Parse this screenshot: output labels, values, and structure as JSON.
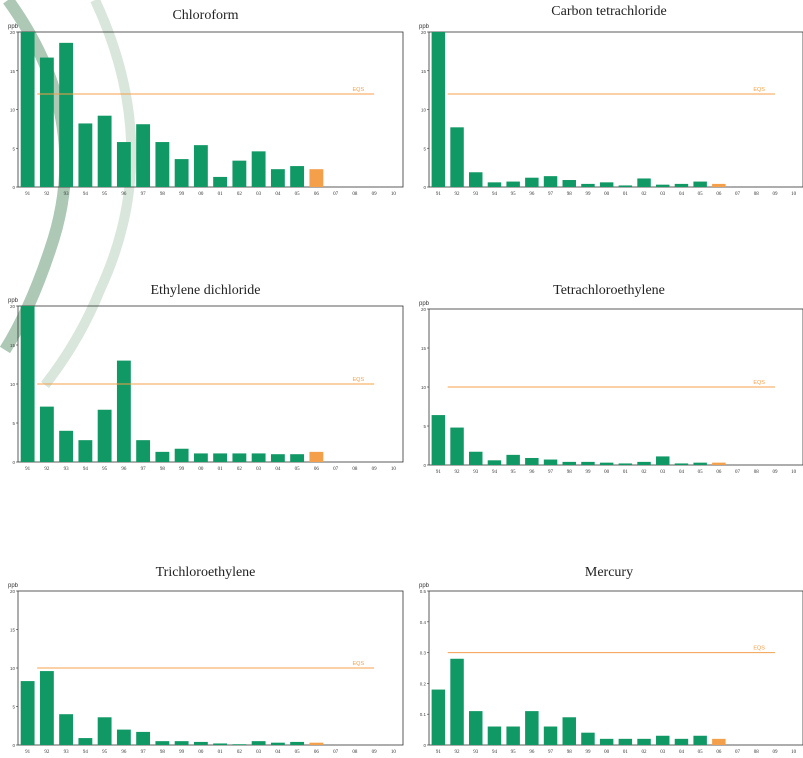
{
  "colors": {
    "bar": "#109865",
    "current": "#f4a04a",
    "eqs": "#f4a04a",
    "frame": "#333333",
    "arc": "#9fbea8"
  },
  "chart_data": [
    {
      "type": "bar",
      "title": "Chloroform",
      "ylabel": "ppb",
      "ylim": [
        0,
        20
      ],
      "yticks": [
        "0",
        "5",
        "10",
        "15",
        "20"
      ],
      "categories": [
        "91",
        "92",
        "93",
        "94",
        "95",
        "96",
        "97",
        "98",
        "99",
        "00",
        "01",
        "02",
        "03",
        "04",
        "05",
        "06",
        "07",
        "08",
        "09",
        "10"
      ],
      "values": [
        20.5,
        16.7,
        18.6,
        8.2,
        9.2,
        5.8,
        8.1,
        5.8,
        3.6,
        5.4,
        1.3,
        3.4,
        4.6,
        2.3,
        2.7,
        2.3,
        null,
        null,
        null,
        null
      ],
      "highlight_index": 15,
      "reference_line": {
        "label": "EQS",
        "value": 12
      }
    },
    {
      "type": "bar",
      "title": "Carbon tetrachloride",
      "ylabel": "ppb",
      "ylim": [
        0,
        20
      ],
      "yticks": [
        "0",
        "5",
        "10",
        "15",
        "20"
      ],
      "categories": [
        "91",
        "92",
        "93",
        "94",
        "95",
        "96",
        "97",
        "98",
        "99",
        "00",
        "01",
        "02",
        "03",
        "04",
        "05",
        "06",
        "07",
        "08",
        "09",
        "10"
      ],
      "values": [
        20.5,
        7.7,
        1.9,
        0.6,
        0.7,
        1.2,
        1.4,
        0.9,
        0.4,
        0.6,
        0.2,
        1.1,
        0.3,
        0.4,
        0.7,
        0.4,
        null,
        null,
        null,
        null
      ],
      "highlight_index": 15,
      "reference_line": {
        "label": "EQS",
        "value": 12
      }
    },
    {
      "type": "bar",
      "title": "Ethylene dichloride",
      "ylabel": "ppb",
      "ylim": [
        0,
        20
      ],
      "yticks": [
        "0",
        "5",
        "10",
        "15",
        "20"
      ],
      "categories": [
        "91",
        "92",
        "93",
        "94",
        "95",
        "96",
        "97",
        "98",
        "99",
        "00",
        "01",
        "02",
        "03",
        "04",
        "05",
        "06",
        "07",
        "08",
        "09",
        "10"
      ],
      "values": [
        20.5,
        7.1,
        4.0,
        2.8,
        6.7,
        13.0,
        2.8,
        1.3,
        1.7,
        1.1,
        1.1,
        1.1,
        1.1,
        1.0,
        1.0,
        1.3,
        null,
        null,
        null,
        null
      ],
      "highlight_index": 15,
      "reference_line": {
        "label": "EQS",
        "value": 10
      }
    },
    {
      "type": "bar",
      "title": "Tetrachloroethylene",
      "ylabel": "ppb",
      "ylim": [
        0,
        20
      ],
      "yticks": [
        "0",
        "5",
        "10",
        "15",
        "20"
      ],
      "categories": [
        "91",
        "92",
        "93",
        "94",
        "95",
        "96",
        "97",
        "98",
        "99",
        "00",
        "01",
        "02",
        "03",
        "04",
        "05",
        "06",
        "07",
        "08",
        "09",
        "10"
      ],
      "values": [
        6.4,
        4.8,
        1.7,
        0.6,
        1.3,
        0.9,
        0.7,
        0.4,
        0.4,
        0.3,
        0.2,
        0.4,
        1.1,
        0.2,
        0.3,
        0.3,
        null,
        null,
        null,
        null
      ],
      "highlight_index": 15,
      "reference_line": {
        "label": "EQS",
        "value": 10
      }
    },
    {
      "type": "bar",
      "title": "Trichloroethylene",
      "ylabel": "ppb",
      "ylim": [
        0,
        20
      ],
      "yticks": [
        "0",
        "5",
        "10",
        "15",
        "20"
      ],
      "categories": [
        "91",
        "92",
        "93",
        "94",
        "95",
        "96",
        "97",
        "98",
        "99",
        "00",
        "01",
        "02",
        "03",
        "04",
        "05",
        "06",
        "07",
        "08",
        "09",
        "10"
      ],
      "values": [
        8.3,
        9.6,
        4.0,
        0.9,
        3.6,
        2.0,
        1.7,
        0.5,
        0.5,
        0.4,
        0.2,
        0.1,
        0.5,
        0.3,
        0.4,
        0.3,
        null,
        null,
        null,
        null
      ],
      "highlight_index": 15,
      "reference_line": {
        "label": "EQS",
        "value": 10
      }
    },
    {
      "type": "bar",
      "title": "Mercury",
      "ylabel": "ppb",
      "ylim": [
        0,
        0.5
      ],
      "yticks": [
        "0",
        "0.1",
        "0.2",
        "0.3",
        "0.4",
        "0.5"
      ],
      "categories": [
        "91",
        "92",
        "93",
        "94",
        "95",
        "96",
        "97",
        "98",
        "99",
        "00",
        "01",
        "02",
        "03",
        "04",
        "05",
        "06",
        "07",
        "08",
        "09",
        "10"
      ],
      "values": [
        0.18,
        0.28,
        0.11,
        0.06,
        0.06,
        0.11,
        0.06,
        0.09,
        0.04,
        0.02,
        0.02,
        0.02,
        0.03,
        0.02,
        0.03,
        0.02,
        null,
        null,
        null,
        null
      ],
      "highlight_index": 15,
      "reference_line": {
        "label": "EQS",
        "value": 0.3
      }
    }
  ]
}
